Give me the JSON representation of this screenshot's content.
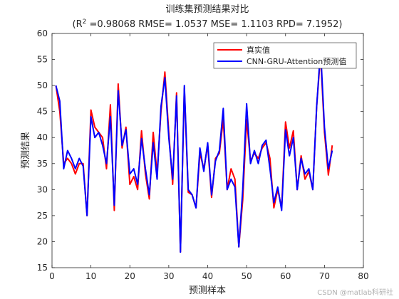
{
  "chart_data": {
    "type": "line",
    "title": "训练集预测结果对比",
    "subtitle_prefix": "(R",
    "subtitle_sup": "2",
    "subtitle_rest": " =0.98068 RMSE= 1.0537 MSE= 1.1103 RPD= 7.1952)",
    "xlabel": "预测样本",
    "ylabel": "预测结果",
    "xlim": [
      0,
      80
    ],
    "ylim": [
      15,
      60
    ],
    "xticks": [
      0,
      10,
      20,
      30,
      40,
      50,
      60,
      70,
      80
    ],
    "yticks": [
      15,
      20,
      25,
      30,
      35,
      40,
      45,
      50,
      55,
      60
    ],
    "grid": false,
    "legend_position": "top-right",
    "x": [
      1,
      2,
      3,
      4,
      5,
      6,
      7,
      8,
      9,
      10,
      11,
      12,
      13,
      14,
      15,
      16,
      17,
      18,
      19,
      20,
      21,
      22,
      23,
      24,
      25,
      26,
      27,
      28,
      29,
      30,
      31,
      32,
      33,
      34,
      35,
      36,
      37,
      38,
      39,
      40,
      41,
      42,
      43,
      44,
      45,
      46,
      47,
      48,
      49,
      50,
      51,
      52,
      53,
      54,
      55,
      56,
      57,
      58,
      59,
      60,
      61,
      62,
      63,
      64,
      65,
      66,
      67,
      68,
      69,
      70,
      71,
      72
    ],
    "series": [
      {
        "name": "真实值",
        "color": "#ff0000",
        "values": [
          50,
          45,
          35,
          36,
          35,
          33,
          35,
          35,
          25,
          45.3,
          42,
          41,
          40,
          34,
          46.3,
          26,
          50.3,
          38,
          42,
          31,
          32.5,
          30,
          41.3,
          33,
          28.2,
          41,
          33,
          45,
          52.6,
          41,
          31,
          48.6,
          18,
          49.5,
          29.5,
          29,
          26.5,
          37,
          34,
          38.5,
          28.5,
          36,
          37,
          43.5,
          30,
          34,
          32,
          19,
          28,
          43.5,
          35.5,
          37,
          36,
          38,
          39,
          36,
          26.5,
          30,
          26.5,
          43,
          38,
          41.3,
          30,
          36.5,
          32,
          33.5,
          30,
          46,
          56,
          41,
          32.8,
          38.5
        ]
      },
      {
        "name": "CNN-GRU-Attention预测值",
        "color": "#0000ff",
        "values": [
          50,
          47,
          34,
          37.5,
          36,
          34,
          36,
          34.5,
          25,
          44,
          40,
          41,
          38.5,
          35,
          44,
          27,
          49,
          38.5,
          41.5,
          33,
          34,
          31,
          39.8,
          34,
          29,
          39,
          32,
          46,
          51.5,
          40,
          32,
          48,
          18,
          50,
          30,
          29,
          26.5,
          38,
          33.5,
          39,
          29,
          35.5,
          37.5,
          45.6,
          30,
          32,
          30.5,
          19,
          30,
          46.5,
          35,
          37.5,
          35,
          38.5,
          39.5,
          34,
          27.5,
          30.5,
          26,
          41.5,
          36.5,
          40,
          30,
          36,
          33,
          34,
          30,
          46,
          57,
          42,
          34,
          37.5
        ]
      }
    ]
  },
  "watermark": "CSDN @matlab科研社"
}
